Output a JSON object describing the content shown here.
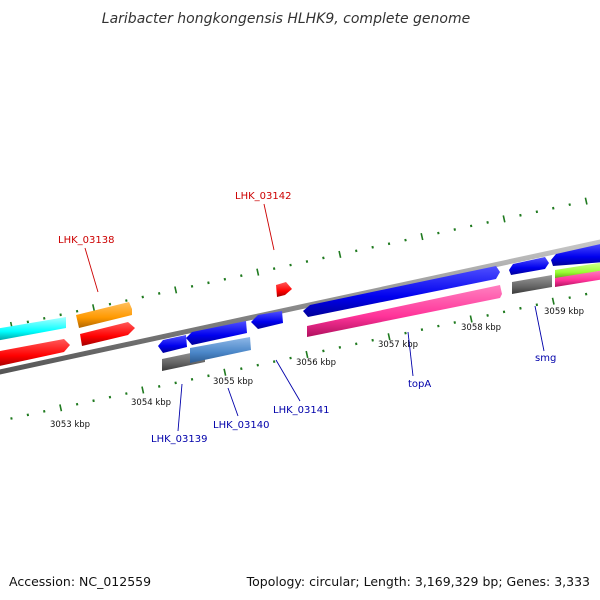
{
  "title": "Laribacter hongkongensis HLHK9, complete genome",
  "footer": {
    "accession": "Accession: NC_012559",
    "summary": "Topology: circular; Length: 3,169,329 bp; Genes: 3,333"
  },
  "colors": {
    "backbone": "#8a8a8a",
    "tick": "#1f7a1f",
    "label_red": "#cc0000",
    "label_blue": "#0000aa",
    "gene_red": "#ff0000",
    "gene_cyan": "#00ffff",
    "gene_orange": "#ff9900",
    "gene_blue": "#0000ee",
    "gene_pink": "#ff3399",
    "gene_gray": "#666666",
    "gene_steel": "#4a86c8",
    "gene_lime": "#99ff33"
  },
  "scale_labels": [
    "3053 kbp",
    "3054 kbp",
    "3055 kbp",
    "3056 kbp",
    "3057 kbp",
    "3058 kbp",
    "3059 kbp"
  ],
  "gene_labels": [
    {
      "text": "LHK_03138",
      "color": "red"
    },
    {
      "text": "LHK_03142",
      "color": "red"
    },
    {
      "text": "LHK_03139",
      "color": "blue"
    },
    {
      "text": "LHK_03140",
      "color": "blue"
    },
    {
      "text": "LHK_03141",
      "color": "blue"
    },
    {
      "text": "topA",
      "color": "blue"
    },
    {
      "text": "smg",
      "color": "blue"
    }
  ]
}
